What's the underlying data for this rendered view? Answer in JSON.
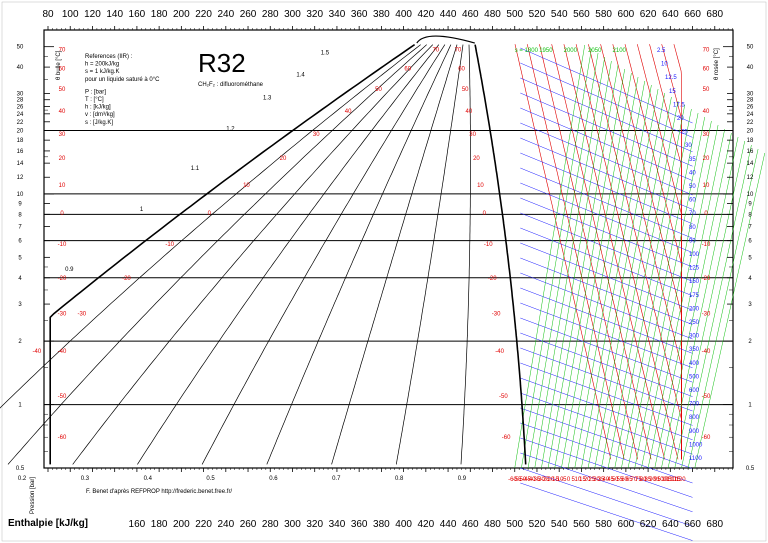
{
  "chart_data": {
    "type": "line",
    "title": "R32",
    "subtitle": "CH₂F₂ : difluorométhane",
    "xlabel_top": "",
    "xlabel": "Enthalpie [kJ/kg]",
    "ylabel": "Pression [bar]",
    "xlim": [
      80,
      700
    ],
    "ylim": [
      0.5,
      60
    ],
    "y_scale": "log",
    "x_ticks": [
      80,
      100,
      120,
      140,
      160,
      180,
      200,
      220,
      240,
      260,
      280,
      300,
      320,
      340,
      360,
      380,
      400,
      420,
      440,
      460,
      480,
      500,
      520,
      540,
      560,
      580,
      600,
      620,
      640,
      660,
      680
    ],
    "x_ticks_bottom": [
      160,
      180,
      200,
      220,
      240,
      260,
      280,
      300,
      320,
      340,
      360,
      380,
      400,
      420,
      440,
      460,
      480,
      500,
      520,
      540,
      560,
      580,
      600,
      620,
      640,
      660,
      680
    ],
    "y_ticks": [
      "0.5",
      "1",
      "2",
      "3",
      "4",
      "5",
      "6",
      "7",
      "8",
      "9",
      "10",
      "12",
      "14",
      "16",
      "18",
      "20",
      "22",
      "24",
      "26",
      "28",
      "30",
      "40",
      "50"
    ],
    "left_axis_label": "θ bulle [°C]",
    "right_axis_label": "θ rosée [°C]",
    "saturation_temps": [
      "-60",
      "-50",
      "-40",
      "-30",
      "-20",
      "-10",
      "0",
      "10",
      "20",
      "30",
      "40",
      "50",
      "60",
      "70"
    ],
    "quality_labels": [
      "0.1",
      "0.2",
      "0.3",
      "0.4",
      "0.5",
      "0.6",
      "0.7",
      "0.8",
      "0.9"
    ],
    "entropy_labels": [
      "0.9",
      "1",
      "1.1",
      "1.2",
      "1.3",
      "1.4",
      "1.5"
    ],
    "density_labels": [
      "2.5",
      "10",
      "12.5",
      "15",
      "17.5",
      "20",
      "25",
      "30",
      "35",
      "40",
      "50",
      "60",
      "70",
      "80",
      "90",
      "100",
      "125",
      "150",
      "175",
      "200",
      "250",
      "300",
      "350",
      "400",
      "500",
      "600",
      "700",
      "800",
      "900",
      "1000",
      "1100"
    ],
    "isotherm_labels": [
      "-60",
      "-55",
      "-50",
      "-45",
      "-40",
      "-35",
      "-30",
      "-25",
      "-20",
      "-15",
      "-10",
      "-5",
      "0",
      "5",
      "10",
      "15",
      "20",
      "25",
      "30",
      "35",
      "40",
      "45",
      "50",
      "55",
      "60",
      "65",
      "70",
      "75",
      "80",
      "85",
      "90",
      "95",
      "100",
      "105",
      "110",
      "115",
      "120"
    ],
    "entropy_top_labels": [
      "s = 1800",
      "1950",
      "2000",
      "2050",
      "2100"
    ],
    "legend_text": [
      "References (IIR) :",
      "h = 200kJ/kg",
      "s = 1 kJ/kg.K",
      "pour un liquide saturé à 0°C",
      "P : [bar]",
      "T : [°C]",
      "h : [kJ/kg]",
      "v : [dm³/kg]",
      "s : [J/kg.K]"
    ],
    "credit": "F. Benet d'après REFPROP http://frederic.benet.free.fr/",
    "grid": true
  },
  "colors": {
    "isotherm": "#e00000",
    "isochore": "#1a1aff",
    "isentrope": "#10c010",
    "frame": "#000000"
  }
}
